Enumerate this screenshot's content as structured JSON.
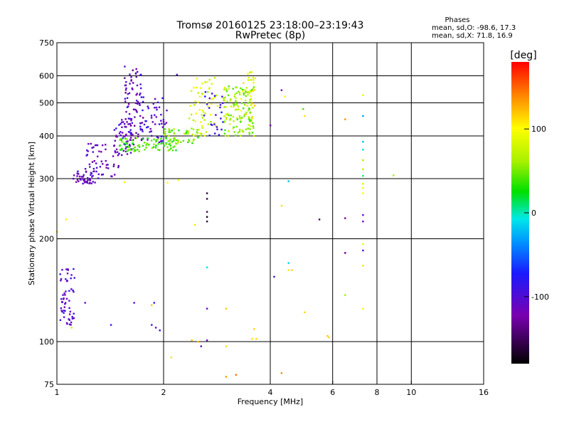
{
  "chart_data": {
    "type": "scatter",
    "title": "Tromsø 20160125 23:18:00–23:19:43",
    "subtitle": "RwPretec (8p)",
    "xlabel": "Frequency [MHz]",
    "ylabel": "Stationary phase Virtual Height [km]",
    "x_scale": "log",
    "y_scale": "log",
    "xlim": [
      1,
      16
    ],
    "ylim": [
      75,
      750
    ],
    "x_ticks": [
      1,
      2,
      4,
      6,
      8,
      10,
      16
    ],
    "x_tick_labels": [
      "1",
      "2",
      "4",
      "6",
      "8",
      "10",
      "16"
    ],
    "y_ticks": [
      75,
      100,
      200,
      300,
      400,
      500,
      600,
      750
    ],
    "y_tick_labels": [
      "75",
      "100",
      "200",
      "300",
      "400",
      "500",
      "600",
      "750"
    ],
    "x_gridlines": [
      2,
      4,
      6,
      8,
      10
    ],
    "y_gridlines": [
      100,
      200,
      300,
      400,
      500,
      600
    ],
    "grid": true,
    "stats": {
      "heading": "Phases",
      "line1": "mean, sd,O: -98.6, 17.3",
      "line2": "mean, sd,X:  71.8, 16.9"
    },
    "colorbar": {
      "label": "[deg]",
      "range": [
        -180,
        180
      ],
      "ticks": [
        100,
        0,
        -100
      ],
      "tick_labels": [
        "100",
        "0",
        "-100"
      ]
    },
    "clusters": [
      {
        "freq": [
          1.02,
          1.12
        ],
        "height": [
          112,
          165
        ],
        "phase": [
          -125,
          -85
        ],
        "count": 55
      },
      {
        "freq": [
          1.1,
          1.28
        ],
        "height": [
          290,
          320
        ],
        "phase": [
          -135,
          -95
        ],
        "count": 40
      },
      {
        "freq": [
          1.2,
          1.5
        ],
        "height": [
          300,
          380
        ],
        "phase": [
          -135,
          -95
        ],
        "count": 55
      },
      {
        "freq": [
          1.45,
          1.65
        ],
        "height": [
          350,
          450
        ],
        "phase": [
          -130,
          -85
        ],
        "count": 60
      },
      {
        "freq": [
          1.55,
          1.75
        ],
        "height": [
          390,
          640
        ],
        "phase": [
          -140,
          -90
        ],
        "count": 75
      },
      {
        "freq": [
          1.7,
          2.05
        ],
        "height": [
          380,
          520
        ],
        "phase": [
          -130,
          -80
        ],
        "count": 55
      },
      {
        "freq": [
          1.5,
          2.2
        ],
        "height": [
          360,
          395
        ],
        "phase": [
          20,
          55
        ],
        "count": 90
      },
      {
        "freq": [
          2.0,
          2.5
        ],
        "height": [
          380,
          420
        ],
        "phase": [
          25,
          75
        ],
        "count": 45
      },
      {
        "freq": [
          2.35,
          2.85
        ],
        "height": [
          400,
          600
        ],
        "phase": [
          55,
          105
        ],
        "count": 60
      },
      {
        "freq": [
          2.6,
          2.95
        ],
        "height": [
          400,
          550
        ],
        "phase": [
          -110,
          -70
        ],
        "count": 25
      },
      {
        "freq": [
          2.95,
          3.6
        ],
        "height": [
          400,
          560
        ],
        "phase": [
          35,
          85
        ],
        "count": 130
      },
      {
        "freq": [
          3.3,
          3.65
        ],
        "height": [
          440,
          620
        ],
        "phase": [
          70,
          120
        ],
        "count": 35
      }
    ],
    "points": [
      {
        "x": 1.0,
        "y": 210,
        "phase": 110
      },
      {
        "x": 1.06,
        "y": 228,
        "phase": 105
      },
      {
        "x": 1.1,
        "y": 110,
        "phase": 75
      },
      {
        "x": 1.2,
        "y": 130,
        "phase": -110
      },
      {
        "x": 1.42,
        "y": 112,
        "phase": -100
      },
      {
        "x": 1.55,
        "y": 293,
        "phase": 90
      },
      {
        "x": 1.65,
        "y": 130,
        "phase": -105
      },
      {
        "x": 1.85,
        "y": 128,
        "phase": 120
      },
      {
        "x": 1.88,
        "y": 130,
        "phase": -80
      },
      {
        "x": 1.9,
        "y": 110,
        "phase": -115
      },
      {
        "x": 1.85,
        "y": 112,
        "phase": -95
      },
      {
        "x": 1.95,
        "y": 108,
        "phase": -90
      },
      {
        "x": 2.05,
        "y": 292,
        "phase": 100
      },
      {
        "x": 2.1,
        "y": 90,
        "phase": 110
      },
      {
        "x": 2.18,
        "y": 605,
        "phase": -100
      },
      {
        "x": 2.2,
        "y": 298,
        "phase": 95
      },
      {
        "x": 2.4,
        "y": 101,
        "phase": 120
      },
      {
        "x": 2.45,
        "y": 220,
        "phase": 110
      },
      {
        "x": 2.5,
        "y": 100,
        "phase": 125
      },
      {
        "x": 2.55,
        "y": 97,
        "phase": -110
      },
      {
        "x": 2.65,
        "y": 272,
        "phase": -160
      },
      {
        "x": 2.65,
        "y": 262,
        "phase": -160
      },
      {
        "x": 2.65,
        "y": 240,
        "phase": -150
      },
      {
        "x": 2.65,
        "y": 232,
        "phase": -170
      },
      {
        "x": 2.65,
        "y": 225,
        "phase": -160
      },
      {
        "x": 2.65,
        "y": 165,
        "phase": -10
      },
      {
        "x": 2.65,
        "y": 125,
        "phase": -120
      },
      {
        "x": 2.65,
        "y": 101,
        "phase": -120
      },
      {
        "x": 3.0,
        "y": 125,
        "phase": 120
      },
      {
        "x": 3.0,
        "y": 97,
        "phase": 110
      },
      {
        "x": 3.0,
        "y": 79,
        "phase": 140
      },
      {
        "x": 3.2,
        "y": 80,
        "phase": 150
      },
      {
        "x": 3.55,
        "y": 102,
        "phase": 110
      },
      {
        "x": 3.6,
        "y": 109,
        "phase": 115
      },
      {
        "x": 3.65,
        "y": 102,
        "phase": 115
      },
      {
        "x": 4.0,
        "y": 430,
        "phase": -130
      },
      {
        "x": 4.1,
        "y": 155,
        "phase": -100
      },
      {
        "x": 4.3,
        "y": 545,
        "phase": -120
      },
      {
        "x": 4.3,
        "y": 250,
        "phase": 110
      },
      {
        "x": 4.3,
        "y": 81,
        "phase": 140
      },
      {
        "x": 4.4,
        "y": 522,
        "phase": 105
      },
      {
        "x": 4.5,
        "y": 295,
        "phase": -20
      },
      {
        "x": 4.5,
        "y": 170,
        "phase": -10
      },
      {
        "x": 4.5,
        "y": 162,
        "phase": 110
      },
      {
        "x": 4.6,
        "y": 162,
        "phase": 115
      },
      {
        "x": 4.95,
        "y": 480,
        "phase": 40
      },
      {
        "x": 5.0,
        "y": 122,
        "phase": 115
      },
      {
        "x": 5.0,
        "y": 458,
        "phase": 110
      },
      {
        "x": 5.5,
        "y": 228,
        "phase": -150
      },
      {
        "x": 5.8,
        "y": 104,
        "phase": 120
      },
      {
        "x": 5.85,
        "y": 103,
        "phase": 115
      },
      {
        "x": 6.5,
        "y": 448,
        "phase": 140
      },
      {
        "x": 6.5,
        "y": 230,
        "phase": -130
      },
      {
        "x": 6.5,
        "y": 182,
        "phase": -140
      },
      {
        "x": 6.5,
        "y": 137,
        "phase": 60
      },
      {
        "x": 7.3,
        "y": 527,
        "phase": 90
      },
      {
        "x": 7.3,
        "y": 458,
        "phase": -30
      },
      {
        "x": 7.3,
        "y": 385,
        "phase": -20
      },
      {
        "x": 7.3,
        "y": 365,
        "phase": -10
      },
      {
        "x": 7.3,
        "y": 340,
        "phase": 60
      },
      {
        "x": 7.3,
        "y": 320,
        "phase": 70
      },
      {
        "x": 7.3,
        "y": 306,
        "phase": 10
      },
      {
        "x": 7.3,
        "y": 290,
        "phase": 80
      },
      {
        "x": 7.3,
        "y": 282,
        "phase": 95
      },
      {
        "x": 7.3,
        "y": 272,
        "phase": 100
      },
      {
        "x": 7.3,
        "y": 235,
        "phase": -110
      },
      {
        "x": 7.3,
        "y": 225,
        "phase": -120
      },
      {
        "x": 7.3,
        "y": 193,
        "phase": 90
      },
      {
        "x": 7.3,
        "y": 185,
        "phase": -100
      },
      {
        "x": 7.3,
        "y": 167,
        "phase": 110
      },
      {
        "x": 7.3,
        "y": 125,
        "phase": 100
      },
      {
        "x": 8.9,
        "y": 307,
        "phase": 60
      }
    ]
  }
}
